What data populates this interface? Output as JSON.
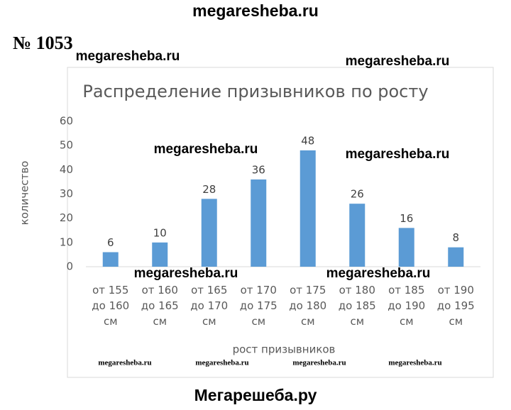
{
  "page": {
    "header": "megaresheba.ru",
    "number": "№ 1053",
    "footer": "Мегарешеба.ру",
    "watermarks": [
      "megaresheba.ru",
      "megaresheba.ru",
      "megaresheba.ru",
      "megaresheba.ru",
      "megaresheba.ru",
      "megaresheba.ru"
    ],
    "small_watermarks": [
      "megaresheba.ru",
      "megaresheba.ru",
      "megaresheba.ru",
      "megaresheba.ru"
    ]
  },
  "chart_data": {
    "type": "bar",
    "title": "Распределение призывников по росту",
    "x_label": "рост призывников",
    "y_label": "количество",
    "categories": [
      "от 155 до 160 см",
      "от 160 до 165 см",
      "от 165 до 170 см",
      "от 170 до 175 см",
      "от 175 до 180 см",
      "от 180 до 185 см",
      "от 185 до 190 см",
      "от 190 до 195 см"
    ],
    "values": [
      6,
      10,
      28,
      36,
      48,
      26,
      16,
      8
    ],
    "color": "#5b9bd5",
    "ylim": [
      0,
      60
    ],
    "yticks": [
      0,
      10,
      20,
      30,
      40,
      50,
      60
    ],
    "grid": false
  }
}
